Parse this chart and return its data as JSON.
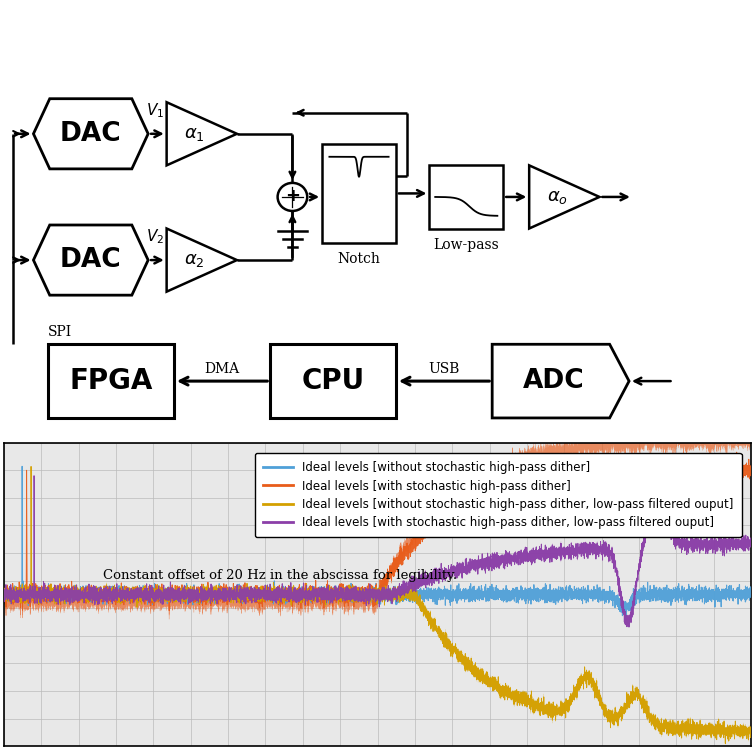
{
  "bg_color": "#ffffff",
  "plot_bg": "#e8e8e8",
  "legend_entries": [
    [
      "#4fa0d8",
      "Ideal levels [without stochastic high-pass dither]"
    ],
    [
      "#e85c1a",
      "Ideal levels [with stochastic high-pass dither]"
    ],
    [
      "#d4a000",
      "Ideal levels [without stochastic high-pass dither, low-pass filtered ouput]"
    ],
    [
      "#8b3fa8",
      "Ideal levels [with stochastic high-pass dither, low-pass filtered ouput]"
    ]
  ],
  "annotation": "Constant offset of 20 Hz in the abscissa for legibility.",
  "line_colors": [
    "#4fa0d8",
    "#e85c1a",
    "#d4a000",
    "#8b3fa8"
  ],
  "grid_color": "#bbbbbb"
}
